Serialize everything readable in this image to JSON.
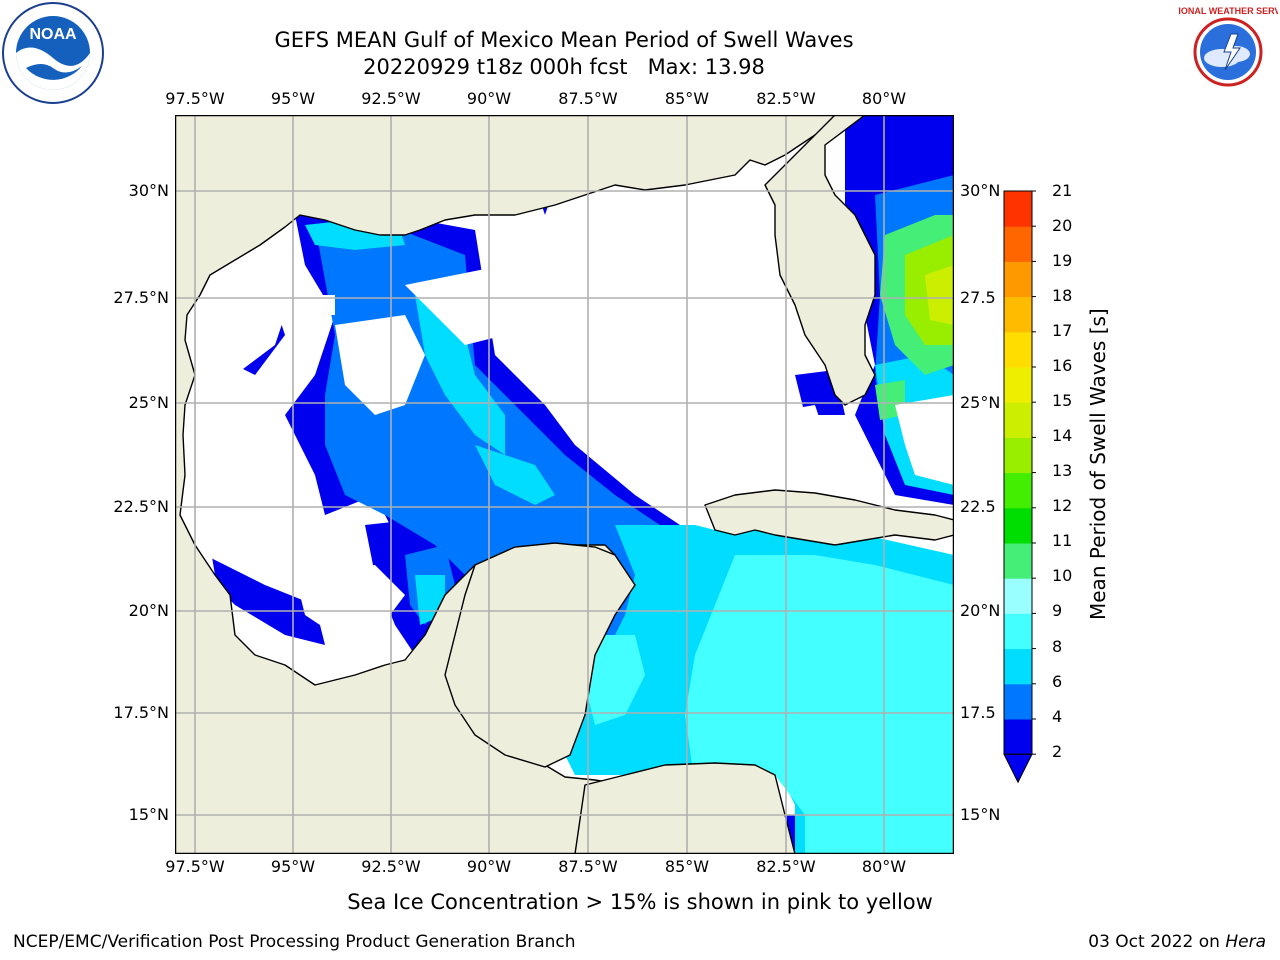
{
  "title": {
    "line1": "GEFS MEAN Gulf of Mexico Mean Period of Swell Waves",
    "line2": "20220929 t18z 000h fcst   Max: 13.98"
  },
  "logos": {
    "left": {
      "name": "noaa-logo",
      "text": "NOAA"
    },
    "right": {
      "name": "national-weather-service-logo",
      "text": "NATIONAL WEATHER SERVICE"
    }
  },
  "map": {
    "lon_labels": [
      "97.5°W",
      "95°W",
      "92.5°W",
      "90°W",
      "87.5°W",
      "85°W",
      "82.5°W",
      "80°W"
    ],
    "lat_labels_left": [
      "30°N",
      "27.5°N",
      "25°N",
      "22.5°N",
      "20°N",
      "17.5°N",
      "15°N"
    ],
    "lat_labels_right": [
      "30°N",
      "27.5",
      "25°N",
      "22.5",
      "20°N",
      "17.5",
      "15°N"
    ],
    "colors": {
      "land": "#eeeedd",
      "coast": "#000000",
      "grid": "#b0b0b0",
      "no_data": "#ffffff"
    }
  },
  "colorbar": {
    "label": "Mean Period of Swell Waves [s]",
    "ticks": [
      "2",
      "4",
      "6",
      "8",
      "9",
      "10",
      "11",
      "12",
      "13",
      "14",
      "15",
      "16",
      "17",
      "18",
      "19",
      "20",
      "21"
    ],
    "colors": [
      "#0000ee",
      "#0077ff",
      "#00ddff",
      "#44ffff",
      "#99ffff",
      "#44ee77",
      "#00dd00",
      "#44ee00",
      "#99ee00",
      "#ccee00",
      "#eeee00",
      "#ffdd00",
      "#ffbb00",
      "#ff9900",
      "#ff6600",
      "#ff3300",
      "#ff0000"
    ],
    "extend_color": "#0000ee"
  },
  "bottom_note": "Sea Ice Concentration > 15% is shown in pink to yellow",
  "footer": {
    "left": "NCEP/EMC/Verification Post Processing Product Generation Branch",
    "right_date": "03 Oct 2022 on ",
    "right_host": "Hera"
  }
}
